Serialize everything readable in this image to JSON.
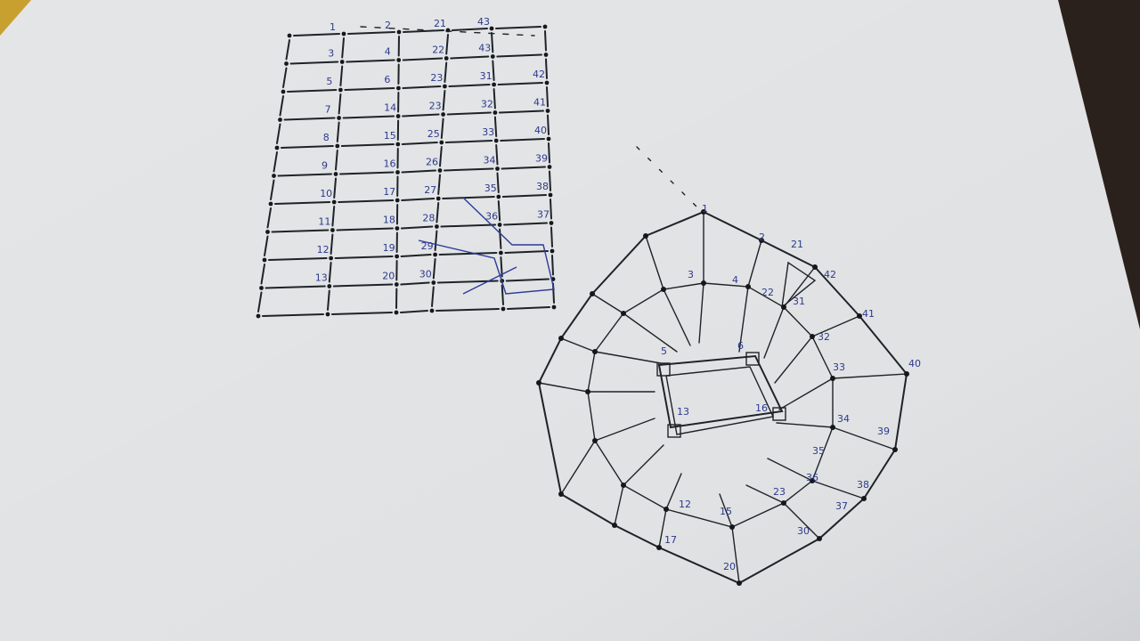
{
  "sketch": {
    "grid_labels": [
      [
        "1",
        "2",
        "21",
        "43",
        ""
      ],
      [
        "3",
        "4",
        "22",
        "43",
        ""
      ],
      [
        "5",
        "6",
        "23",
        "31",
        "42"
      ],
      [
        "7",
        "14",
        "23",
        "32",
        "41"
      ],
      [
        "8",
        "15",
        "25",
        "33",
        "40"
      ],
      [
        "9",
        "16",
        "26",
        "34",
        "39"
      ],
      [
        "10",
        "17",
        "27",
        "35",
        "38"
      ],
      [
        "11",
        "18",
        "28",
        "36",
        "37"
      ],
      [
        "12",
        "19",
        "29",
        "",
        ""
      ],
      [
        "13",
        "20",
        "30",
        "",
        ""
      ]
    ],
    "radial_labels": [
      {
        "id": "n1",
        "text": "1"
      },
      {
        "id": "n2",
        "text": "2"
      },
      {
        "id": "n21",
        "text": "21"
      },
      {
        "id": "n42",
        "text": "42"
      },
      {
        "id": "n3",
        "text": "3"
      },
      {
        "id": "n4",
        "text": "4"
      },
      {
        "id": "n22",
        "text": "22"
      },
      {
        "id": "n31",
        "text": "31"
      },
      {
        "id": "n41",
        "text": "41"
      },
      {
        "id": "n32",
        "text": "32"
      },
      {
        "id": "n40",
        "text": "40"
      },
      {
        "id": "n33",
        "text": "33"
      },
      {
        "id": "n5",
        "text": "5"
      },
      {
        "id": "n6",
        "text": "6"
      },
      {
        "id": "n34",
        "text": "34"
      },
      {
        "id": "n39",
        "text": "39"
      },
      {
        "id": "n16",
        "text": "16"
      },
      {
        "id": "n13",
        "text": "13"
      },
      {
        "id": "n35",
        "text": "35"
      },
      {
        "id": "n36",
        "text": "36"
      },
      {
        "id": "n38",
        "text": "38"
      },
      {
        "id": "n37",
        "text": "37"
      },
      {
        "id": "n12",
        "text": "12"
      },
      {
        "id": "n15",
        "text": "15"
      },
      {
        "id": "n23",
        "text": "23"
      },
      {
        "id": "n17",
        "text": "17"
      },
      {
        "id": "n30",
        "text": "30"
      },
      {
        "id": "n20",
        "text": "20"
      }
    ]
  }
}
